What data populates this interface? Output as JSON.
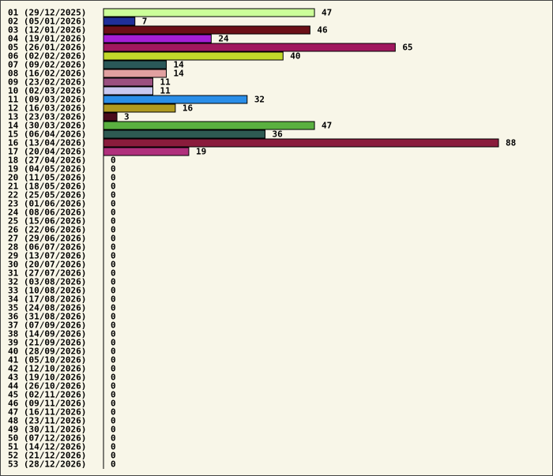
{
  "chart_data": {
    "type": "bar",
    "orientation": "horizontal",
    "title": "",
    "xlabel": "",
    "ylabel": "",
    "grid": false,
    "legend": "none",
    "xlim": [
      0,
      88
    ],
    "categories": [
      "01 (29/12/2025)",
      "02 (05/01/2026)",
      "03 (12/01/2026)",
      "04 (19/01/2026)",
      "05 (26/01/2026)",
      "06 (02/02/2026)",
      "07 (09/02/2026)",
      "08 (16/02/2026)",
      "09 (23/02/2026)",
      "10 (02/03/2026)",
      "11 (09/03/2026)",
      "12 (16/03/2026)",
      "13 (23/03/2026)",
      "14 (30/03/2026)",
      "15 (06/04/2026)",
      "16 (13/04/2026)",
      "17 (20/04/2026)",
      "18 (27/04/2026)",
      "19 (04/05/2026)",
      "20 (11/05/2026)",
      "21 (18/05/2026)",
      "22 (25/05/2026)",
      "23 (01/06/2026)",
      "24 (08/06/2026)",
      "25 (15/06/2026)",
      "26 (22/06/2026)",
      "27 (29/06/2026)",
      "28 (06/07/2026)",
      "29 (13/07/2026)",
      "30 (20/07/2026)",
      "31 (27/07/2026)",
      "32 (03/08/2026)",
      "33 (10/08/2026)",
      "34 (17/08/2026)",
      "35 (24/08/2026)",
      "36 (31/08/2026)",
      "37 (07/09/2026)",
      "38 (14/09/2026)",
      "39 (21/09/2026)",
      "40 (28/09/2026)",
      "41 (05/10/2026)",
      "42 (12/10/2026)",
      "43 (19/10/2026)",
      "44 (26/10/2026)",
      "45 (02/11/2026)",
      "46 (09/11/2026)",
      "47 (16/11/2026)",
      "48 (23/11/2026)",
      "49 (30/11/2026)",
      "50 (07/12/2026)",
      "51 (14/12/2026)",
      "52 (21/12/2026)",
      "53 (28/12/2026)"
    ],
    "values": [
      47,
      7,
      46,
      24,
      65,
      40,
      14,
      14,
      11,
      11,
      32,
      16,
      3,
      47,
      36,
      88,
      19,
      0,
      0,
      0,
      0,
      0,
      0,
      0,
      0,
      0,
      0,
      0,
      0,
      0,
      0,
      0,
      0,
      0,
      0,
      0,
      0,
      0,
      0,
      0,
      0,
      0,
      0,
      0,
      0,
      0,
      0,
      0,
      0,
      0,
      0,
      0,
      0
    ],
    "colors": [
      "#ccff99",
      "#1f2f99",
      "#6b0f17",
      "#a51ed6",
      "#a0185e",
      "#c2d82a",
      "#2a5858",
      "#e1a0a0",
      "#9b5080",
      "#c8c8f0",
      "#2a8ee8",
      "#b09a20",
      "#4a0a1a",
      "#5ab040",
      "#2e5a52",
      "#8a1c3c",
      "#b0307c"
    ]
  }
}
